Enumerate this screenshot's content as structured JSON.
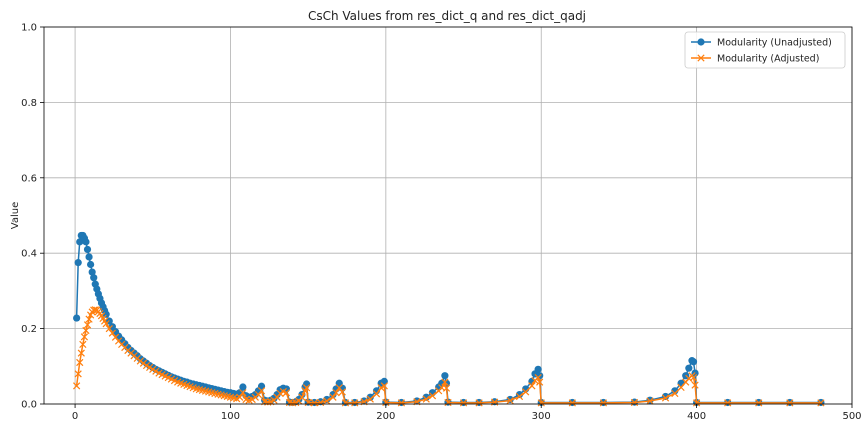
{
  "chart_data": {
    "type": "line",
    "title": "CsCh Values from res_dict_q and res_dict_qadj",
    "xlabel": "",
    "ylabel": "Value",
    "xlim": [
      -20,
      500
    ],
    "ylim": [
      0,
      1.0
    ],
    "x_ticks": [
      "0",
      "100",
      "200",
      "300",
      "400",
      "500"
    ],
    "y_ticks": [
      "0.0",
      "0.2",
      "0.4",
      "0.6",
      "0.8",
      "1.0"
    ],
    "grid": true,
    "legend_position": "top-right",
    "series": [
      {
        "name": "Modularity (Unadjusted)",
        "color": "#1f77b4",
        "marker": "circle",
        "points": [
          [
            1,
            0.228
          ],
          [
            2,
            0.375
          ],
          [
            3,
            0.43
          ],
          [
            4,
            0.447
          ],
          [
            5,
            0.447
          ],
          [
            6,
            0.44
          ],
          [
            7,
            0.43
          ],
          [
            8,
            0.41
          ],
          [
            9,
            0.39
          ],
          [
            10,
            0.37
          ],
          [
            11,
            0.35
          ],
          [
            12,
            0.335
          ],
          [
            13,
            0.318
          ],
          [
            14,
            0.305
          ],
          [
            15,
            0.292
          ],
          [
            16,
            0.28
          ],
          [
            17,
            0.268
          ],
          [
            18,
            0.258
          ],
          [
            19,
            0.248
          ],
          [
            20,
            0.238
          ],
          [
            22,
            0.22
          ],
          [
            24,
            0.205
          ],
          [
            26,
            0.192
          ],
          [
            28,
            0.18
          ],
          [
            30,
            0.17
          ],
          [
            32,
            0.16
          ],
          [
            34,
            0.15
          ],
          [
            36,
            0.142
          ],
          [
            38,
            0.135
          ],
          [
            40,
            0.128
          ],
          [
            42,
            0.12
          ],
          [
            44,
            0.114
          ],
          [
            46,
            0.108
          ],
          [
            48,
            0.102
          ],
          [
            50,
            0.097
          ],
          [
            52,
            0.092
          ],
          [
            54,
            0.088
          ],
          [
            56,
            0.084
          ],
          [
            58,
            0.08
          ],
          [
            60,
            0.076
          ],
          [
            62,
            0.072
          ],
          [
            64,
            0.069
          ],
          [
            66,
            0.066
          ],
          [
            68,
            0.063
          ],
          [
            70,
            0.06
          ],
          [
            72,
            0.058
          ],
          [
            74,
            0.055
          ],
          [
            76,
            0.053
          ],
          [
            78,
            0.051
          ],
          [
            80,
            0.049
          ],
          [
            82,
            0.047
          ],
          [
            84,
            0.045
          ],
          [
            86,
            0.043
          ],
          [
            88,
            0.041
          ],
          [
            90,
            0.039
          ],
          [
            92,
            0.037
          ],
          [
            94,
            0.035
          ],
          [
            96,
            0.033
          ],
          [
            98,
            0.031
          ],
          [
            100,
            0.03
          ],
          [
            102,
            0.028
          ],
          [
            104,
            0.026
          ],
          [
            106,
            0.03
          ],
          [
            108,
            0.045
          ],
          [
            110,
            0.022
          ],
          [
            112,
            0.018
          ],
          [
            114,
            0.02
          ],
          [
            116,
            0.025
          ],
          [
            118,
            0.035
          ],
          [
            120,
            0.047
          ],
          [
            122,
            0.01
          ],
          [
            124,
            0.008
          ],
          [
            126,
            0.01
          ],
          [
            128,
            0.015
          ],
          [
            130,
            0.025
          ],
          [
            132,
            0.038
          ],
          [
            134,
            0.042
          ],
          [
            136,
            0.04
          ],
          [
            138,
            0.005
          ],
          [
            140,
            0.004
          ],
          [
            142,
            0.006
          ],
          [
            144,
            0.012
          ],
          [
            146,
            0.025
          ],
          [
            148,
            0.045
          ],
          [
            149,
            0.053
          ],
          [
            150,
            0.005
          ],
          [
            154,
            0.004
          ],
          [
            158,
            0.006
          ],
          [
            162,
            0.012
          ],
          [
            166,
            0.025
          ],
          [
            168,
            0.04
          ],
          [
            170,
            0.055
          ],
          [
            172,
            0.042
          ],
          [
            174,
            0.004
          ],
          [
            180,
            0.004
          ],
          [
            186,
            0.008
          ],
          [
            190,
            0.018
          ],
          [
            194,
            0.035
          ],
          [
            197,
            0.055
          ],
          [
            199,
            0.06
          ],
          [
            200,
            0.005
          ],
          [
            210,
            0.004
          ],
          [
            220,
            0.008
          ],
          [
            226,
            0.018
          ],
          [
            230,
            0.03
          ],
          [
            234,
            0.045
          ],
          [
            236,
            0.055
          ],
          [
            238,
            0.075
          ],
          [
            239,
            0.055
          ],
          [
            240,
            0.005
          ],
          [
            250,
            0.004
          ],
          [
            260,
            0.004
          ],
          [
            270,
            0.006
          ],
          [
            280,
            0.012
          ],
          [
            286,
            0.025
          ],
          [
            290,
            0.04
          ],
          [
            294,
            0.06
          ],
          [
            296,
            0.08
          ],
          [
            298,
            0.092
          ],
          [
            299,
            0.075
          ],
          [
            300,
            0.004
          ],
          [
            320,
            0.004
          ],
          [
            340,
            0.004
          ],
          [
            360,
            0.005
          ],
          [
            370,
            0.01
          ],
          [
            380,
            0.02
          ],
          [
            386,
            0.035
          ],
          [
            390,
            0.055
          ],
          [
            393,
            0.075
          ],
          [
            395,
            0.095
          ],
          [
            397,
            0.115
          ],
          [
            398,
            0.112
          ],
          [
            399,
            0.082
          ],
          [
            400,
            0.004
          ],
          [
            420,
            0.004
          ],
          [
            440,
            0.004
          ],
          [
            460,
            0.004
          ],
          [
            480,
            0.004
          ]
        ]
      },
      {
        "name": "Modularity (Adjusted)",
        "color": "#ff7f0e",
        "marker": "x",
        "points": [
          [
            1,
            0.048
          ],
          [
            2,
            0.08
          ],
          [
            3,
            0.11
          ],
          [
            4,
            0.135
          ],
          [
            5,
            0.158
          ],
          [
            6,
            0.178
          ],
          [
            7,
            0.195
          ],
          [
            8,
            0.21
          ],
          [
            9,
            0.225
          ],
          [
            10,
            0.236
          ],
          [
            11,
            0.244
          ],
          [
            12,
            0.249
          ],
          [
            13,
            0.25
          ],
          [
            14,
            0.249
          ],
          [
            15,
            0.245
          ],
          [
            16,
            0.24
          ],
          [
            17,
            0.234
          ],
          [
            18,
            0.227
          ],
          [
            19,
            0.22
          ],
          [
            20,
            0.213
          ],
          [
            22,
            0.2
          ],
          [
            24,
            0.188
          ],
          [
            26,
            0.177
          ],
          [
            28,
            0.167
          ],
          [
            30,
            0.158
          ],
          [
            32,
            0.15
          ],
          [
            34,
            0.142
          ],
          [
            36,
            0.135
          ],
          [
            38,
            0.128
          ],
          [
            40,
            0.121
          ],
          [
            42,
            0.114
          ],
          [
            44,
            0.108
          ],
          [
            46,
            0.102
          ],
          [
            48,
            0.097
          ],
          [
            50,
            0.092
          ],
          [
            52,
            0.087
          ],
          [
            54,
            0.082
          ],
          [
            56,
            0.078
          ],
          [
            58,
            0.074
          ],
          [
            60,
            0.07
          ],
          [
            62,
            0.066
          ],
          [
            64,
            0.062
          ],
          [
            66,
            0.058
          ],
          [
            68,
            0.055
          ],
          [
            70,
            0.052
          ],
          [
            72,
            0.049
          ],
          [
            74,
            0.046
          ],
          [
            76,
            0.043
          ],
          [
            78,
            0.04
          ],
          [
            80,
            0.038
          ],
          [
            82,
            0.036
          ],
          [
            84,
            0.034
          ],
          [
            86,
            0.032
          ],
          [
            88,
            0.03
          ],
          [
            90,
            0.028
          ],
          [
            92,
            0.026
          ],
          [
            94,
            0.024
          ],
          [
            96,
            0.022
          ],
          [
            98,
            0.02
          ],
          [
            100,
            0.018
          ],
          [
            102,
            0.016
          ],
          [
            104,
            0.014
          ],
          [
            106,
            0.018
          ],
          [
            108,
            0.03
          ],
          [
            110,
            0.012
          ],
          [
            112,
            0.01
          ],
          [
            114,
            0.012
          ],
          [
            116,
            0.018
          ],
          [
            118,
            0.025
          ],
          [
            120,
            0.035
          ],
          [
            122,
            0.006
          ],
          [
            124,
            0.005
          ],
          [
            126,
            0.006
          ],
          [
            128,
            0.01
          ],
          [
            130,
            0.018
          ],
          [
            132,
            0.028
          ],
          [
            134,
            0.033
          ],
          [
            136,
            0.03
          ],
          [
            138,
            0.004
          ],
          [
            140,
            0.003
          ],
          [
            142,
            0.004
          ],
          [
            144,
            0.008
          ],
          [
            146,
            0.018
          ],
          [
            148,
            0.035
          ],
          [
            149,
            0.043
          ],
          [
            150,
            0.004
          ],
          [
            154,
            0.003
          ],
          [
            158,
            0.004
          ],
          [
            162,
            0.008
          ],
          [
            166,
            0.018
          ],
          [
            168,
            0.03
          ],
          [
            170,
            0.043
          ],
          [
            172,
            0.032
          ],
          [
            174,
            0.003
          ],
          [
            180,
            0.003
          ],
          [
            186,
            0.006
          ],
          [
            190,
            0.013
          ],
          [
            194,
            0.027
          ],
          [
            197,
            0.043
          ],
          [
            199,
            0.048
          ],
          [
            200,
            0.004
          ],
          [
            210,
            0.003
          ],
          [
            220,
            0.006
          ],
          [
            226,
            0.013
          ],
          [
            230,
            0.022
          ],
          [
            234,
            0.035
          ],
          [
            236,
            0.043
          ],
          [
            238,
            0.058
          ],
          [
            239,
            0.042
          ],
          [
            240,
            0.004
          ],
          [
            250,
            0.003
          ],
          [
            260,
            0.003
          ],
          [
            270,
            0.005
          ],
          [
            280,
            0.009
          ],
          [
            286,
            0.02
          ],
          [
            290,
            0.032
          ],
          [
            294,
            0.048
          ],
          [
            296,
            0.062
          ],
          [
            298,
            0.07
          ],
          [
            299,
            0.058
          ],
          [
            300,
            0.003
          ],
          [
            320,
            0.003
          ],
          [
            340,
            0.003
          ],
          [
            360,
            0.004
          ],
          [
            370,
            0.008
          ],
          [
            380,
            0.016
          ],
          [
            386,
            0.028
          ],
          [
            390,
            0.044
          ],
          [
            393,
            0.058
          ],
          [
            395,
            0.068
          ],
          [
            397,
            0.075
          ],
          [
            398,
            0.07
          ],
          [
            399,
            0.05
          ],
          [
            400,
            0.003
          ],
          [
            420,
            0.003
          ],
          [
            440,
            0.003
          ],
          [
            460,
            0.003
          ],
          [
            480,
            0.003
          ]
        ]
      }
    ]
  }
}
